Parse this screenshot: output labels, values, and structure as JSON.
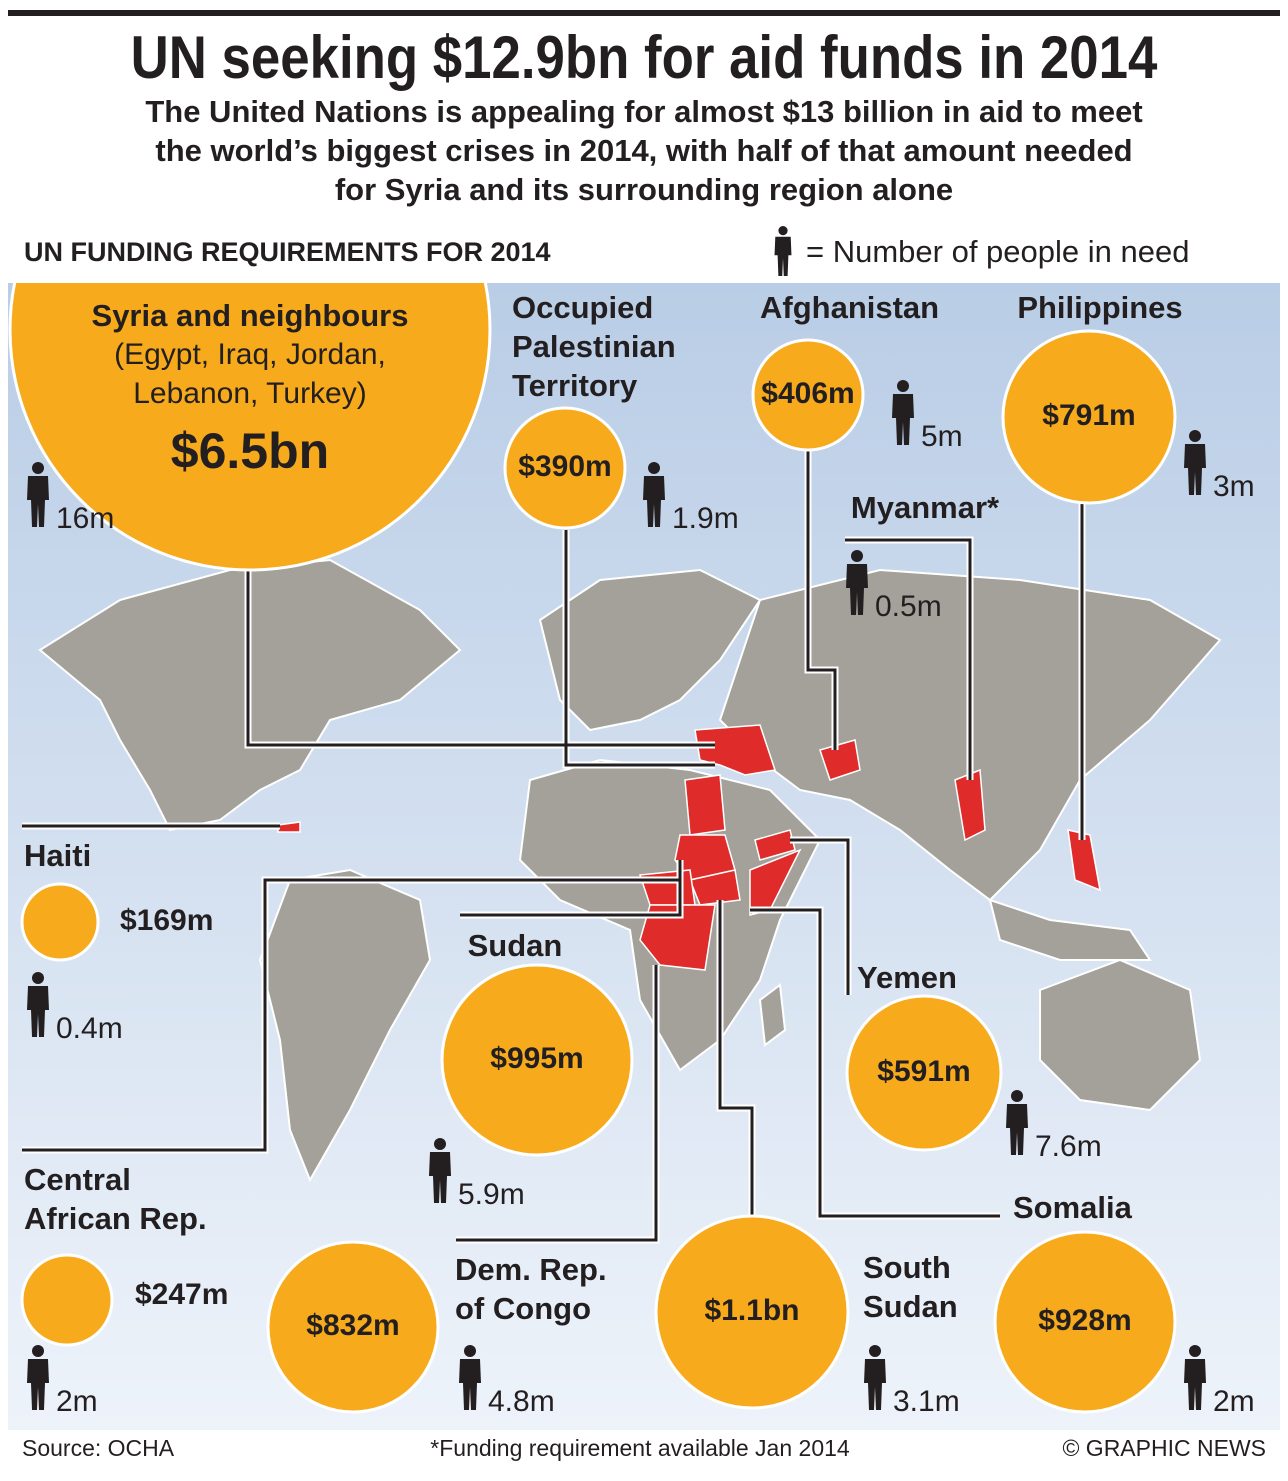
{
  "header": {
    "title": "UN seeking $12.9bn for aid funds in 2014",
    "subtitle": [
      "The United Nations is appealing for almost $13 billion in aid to meet",
      "the world’s biggest crises in 2014, with half of that amount needed",
      "for Syria and its surrounding region alone"
    ]
  },
  "section_title": "UN FUNDING REQUIREMENTS FOR 2014",
  "legend": "= Number of people in need",
  "regions": [
    {
      "name": [
        "Syria and neighbours"
      ],
      "details": [
        "(Egypt, Iraq, Jordan,",
        "Lebanon, Turkey)"
      ],
      "amount": "$6.5bn",
      "people": "16m"
    },
    {
      "name": [
        "Occupied",
        "Palestinian",
        "Territory"
      ],
      "amount": "$390m",
      "people": "1.9m"
    },
    {
      "name": [
        "Afghanistan"
      ],
      "amount": "$406m",
      "people": "5m"
    },
    {
      "name": [
        "Philippines"
      ],
      "amount": "$791m",
      "people": "3m"
    },
    {
      "name": [
        "Myanmar*"
      ],
      "people": "0.5m"
    },
    {
      "name": [
        "Haiti"
      ],
      "amount": "$169m",
      "people": "0.4m"
    },
    {
      "name": [
        "Sudan"
      ],
      "amount": "$995m",
      "people": "5.9m"
    },
    {
      "name": [
        "Yemen"
      ],
      "amount": "$591m",
      "people": "7.6m"
    },
    {
      "name": [
        "Central",
        "African Rep."
      ],
      "amount": "$247m",
      "people": "2m"
    },
    {
      "name": [
        "Dem. Rep.",
        "of Congo"
      ],
      "amount": "$832m",
      "people": "4.8m"
    },
    {
      "name": [
        "South",
        "Sudan"
      ],
      "amount": "$1.1bn",
      "people": "3.1m"
    },
    {
      "name": [
        "Somalia"
      ],
      "amount": "$928m",
      "people": "2m"
    }
  ],
  "footer": {
    "source": "Source: OCHA",
    "note": "*Funding requirement available Jan 2014",
    "credit": "© GRAPHIC NEWS"
  }
}
